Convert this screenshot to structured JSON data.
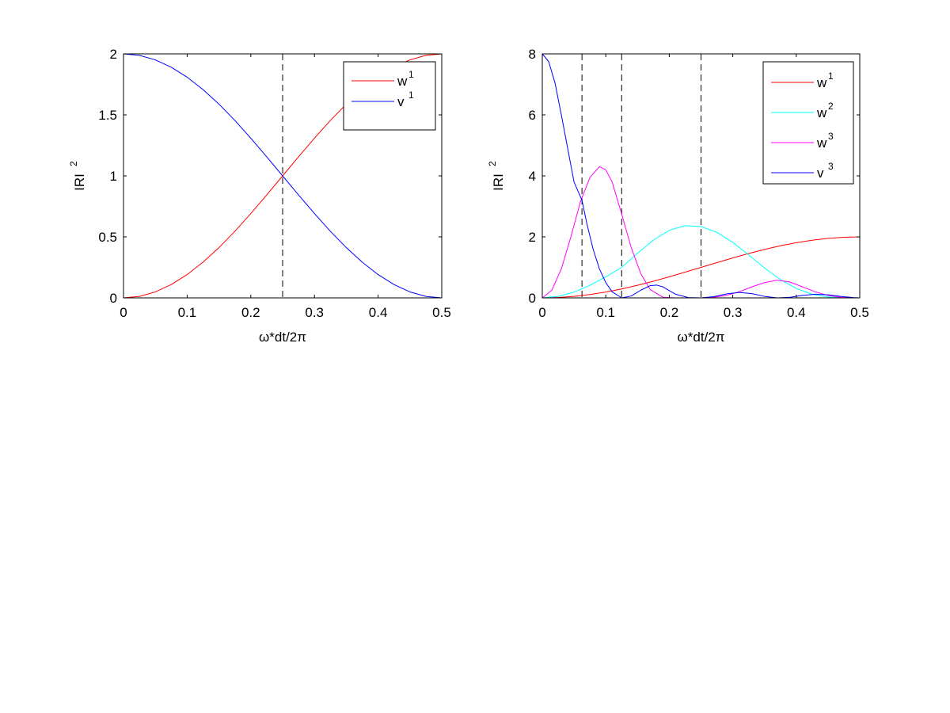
{
  "chart_data": [
    {
      "type": "line",
      "xlabel": "ω*dt/2π",
      "ylabel": "IRI",
      "ylabel_sup": "2",
      "xlim": [
        0,
        0.5
      ],
      "ylim": [
        0,
        2
      ],
      "xticks": [
        0,
        0.1,
        0.2,
        0.3,
        0.4,
        0.5
      ],
      "xtick_labels": [
        "0",
        "0.1",
        "0.2",
        "0.3",
        "0.4",
        "0.5"
      ],
      "yticks": [
        0,
        0.5,
        1,
        1.5,
        2
      ],
      "ytick_labels": [
        "0",
        "0.5",
        "1",
        "1.5",
        "2"
      ],
      "grid": false,
      "legend_position": "top-right",
      "vlines": [
        0.25
      ],
      "series": [
        {
          "name": "w",
          "sup": "1",
          "color": "#ff0000",
          "x": [
            0,
            0.025,
            0.05,
            0.075,
            0.1,
            0.125,
            0.15,
            0.175,
            0.2,
            0.225,
            0.25,
            0.275,
            0.3,
            0.325,
            0.35,
            0.375,
            0.4,
            0.425,
            0.45,
            0.475,
            0.5
          ],
          "values": [
            0,
            0.0123,
            0.0489,
            0.109,
            0.191,
            0.293,
            0.412,
            0.546,
            0.691,
            0.844,
            1.0,
            1.156,
            1.309,
            1.454,
            1.588,
            1.707,
            1.809,
            1.891,
            1.951,
            1.988,
            2.0
          ]
        },
        {
          "name": "v",
          "sup": "1",
          "color": "#0000ff",
          "x": [
            0,
            0.025,
            0.05,
            0.075,
            0.1,
            0.125,
            0.15,
            0.175,
            0.2,
            0.225,
            0.25,
            0.275,
            0.3,
            0.325,
            0.35,
            0.375,
            0.4,
            0.425,
            0.45,
            0.475,
            0.5
          ],
          "values": [
            2.0,
            1.988,
            1.951,
            1.891,
            1.809,
            1.707,
            1.588,
            1.454,
            1.309,
            1.156,
            1.0,
            0.844,
            0.691,
            0.546,
            0.412,
            0.293,
            0.191,
            0.109,
            0.0489,
            0.0123,
            0
          ]
        }
      ]
    },
    {
      "type": "line",
      "xlabel": "ω*dt/2π",
      "ylabel": "IRI",
      "ylabel_sup": "2",
      "xlim": [
        0,
        0.5
      ],
      "ylim": [
        0,
        8
      ],
      "xticks": [
        0,
        0.1,
        0.2,
        0.3,
        0.4,
        0.5
      ],
      "xtick_labels": [
        "0",
        "0.1",
        "0.2",
        "0.3",
        "0.4",
        "0.5"
      ],
      "yticks": [
        0,
        2,
        4,
        6,
        8
      ],
      "ytick_labels": [
        "0",
        "2",
        "4",
        "6",
        "8"
      ],
      "grid": false,
      "legend_position": "top-right",
      "vlines": [
        0.0625,
        0.125,
        0.25
      ],
      "series": [
        {
          "name": "w",
          "sup": "1",
          "color": "#ff0000",
          "x": [
            0,
            0.025,
            0.05,
            0.075,
            0.1,
            0.125,
            0.15,
            0.175,
            0.2,
            0.225,
            0.25,
            0.275,
            0.3,
            0.325,
            0.35,
            0.375,
            0.4,
            0.425,
            0.45,
            0.475,
            0.5
          ],
          "values": [
            0,
            0.0123,
            0.0489,
            0.109,
            0.191,
            0.293,
            0.412,
            0.546,
            0.691,
            0.844,
            1.0,
            1.156,
            1.309,
            1.454,
            1.588,
            1.707,
            1.809,
            1.891,
            1.951,
            1.988,
            2.0
          ]
        },
        {
          "name": "w",
          "sup": "2",
          "color": "#00ffff",
          "x": [
            0,
            0.025,
            0.05,
            0.075,
            0.1,
            0.125,
            0.15,
            0.175,
            0.2,
            0.225,
            0.25,
            0.275,
            0.3,
            0.325,
            0.35,
            0.375,
            0.4,
            0.425,
            0.45,
            0.475,
            0.5
          ],
          "values": [
            0,
            0.048,
            0.189,
            0.41,
            0.691,
            1.0,
            1.464,
            1.893,
            2.216,
            2.367,
            2.34,
            2.15,
            1.82,
            1.41,
            0.98,
            0.6,
            0.31,
            0.12,
            0.03,
            0.004,
            0
          ]
        },
        {
          "name": "w",
          "sup": "3",
          "color": "#ff00ff",
          "x": [
            0,
            0.015,
            0.03,
            0.045,
            0.06,
            0.075,
            0.09,
            0.1,
            0.11,
            0.125,
            0.14,
            0.155,
            0.17,
            0.19,
            0.21,
            0.23,
            0.25,
            0.27,
            0.29,
            0.31,
            0.33,
            0.35,
            0.37,
            0.39,
            0.41,
            0.43,
            0.45,
            0.47,
            0.49,
            0.5
          ],
          "values": [
            0,
            0.25,
            0.95,
            2.0,
            3.15,
            3.95,
            4.3,
            4.2,
            3.8,
            2.75,
            1.65,
            0.8,
            0.27,
            0.02,
            0,
            0,
            0,
            0.02,
            0.08,
            0.2,
            0.36,
            0.5,
            0.58,
            0.52,
            0.36,
            0.2,
            0.08,
            0.02,
            0.002,
            0
          ]
        },
        {
          "name": "v",
          "sup": "3",
          "color": "#0000ff",
          "x": [
            0,
            0.01,
            0.02,
            0.03,
            0.04,
            0.05,
            0.0625,
            0.07,
            0.08,
            0.09,
            0.1,
            0.11,
            0.125,
            0.14,
            0.155,
            0.17,
            0.18,
            0.19,
            0.21,
            0.23,
            0.25,
            0.27,
            0.29,
            0.31,
            0.33,
            0.35,
            0.37,
            0.39,
            0.41,
            0.43,
            0.45,
            0.47,
            0.49,
            0.5
          ],
          "values": [
            8.0,
            7.75,
            7.05,
            6.0,
            4.9,
            3.8,
            3.2,
            2.45,
            1.6,
            0.95,
            0.5,
            0.2,
            0.0,
            0.06,
            0.25,
            0.4,
            0.42,
            0.36,
            0.12,
            0.01,
            0.0,
            0.04,
            0.13,
            0.18,
            0.14,
            0.05,
            0.0,
            0.02,
            0.08,
            0.12,
            0.1,
            0.05,
            0.01,
            0
          ]
        }
      ]
    }
  ]
}
